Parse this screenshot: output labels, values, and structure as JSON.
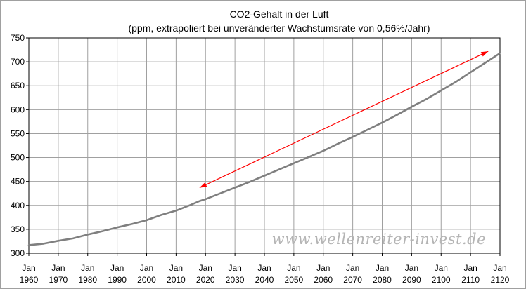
{
  "chart_data": {
    "type": "line",
    "title": "CO2-Gehalt in der Luft",
    "subtitle": "(ppm, extrapoliert bei unveränderter Wachstumsrate von 0,56%/Jahr)",
    "xlabel": "",
    "ylabel": "",
    "xlim": [
      1960,
      2120
    ],
    "ylim": [
      300,
      750
    ],
    "y_ticks": [
      "300",
      "350",
      "400",
      "450",
      "500",
      "550",
      "600",
      "650",
      "700",
      "750"
    ],
    "x_ticks": [
      {
        "month": "Jan",
        "year": "1960"
      },
      {
        "month": "Jan",
        "year": "1970"
      },
      {
        "month": "Jan",
        "year": "1980"
      },
      {
        "month": "Jan",
        "year": "1990"
      },
      {
        "month": "Jan",
        "year": "2000"
      },
      {
        "month": "Jan",
        "year": "2010"
      },
      {
        "month": "Jan",
        "year": "2020"
      },
      {
        "month": "Jan",
        "year": "2030"
      },
      {
        "month": "Jan",
        "year": "2040"
      },
      {
        "month": "Jan",
        "year": "2050"
      },
      {
        "month": "Jan",
        "year": "2060"
      },
      {
        "month": "Jan",
        "year": "2070"
      },
      {
        "month": "Jan",
        "year": "2080"
      },
      {
        "month": "Jan",
        "year": "2090"
      },
      {
        "month": "Jan",
        "year": "2100"
      },
      {
        "month": "Jan",
        "year": "2110"
      },
      {
        "month": "Jan",
        "year": "2120"
      }
    ],
    "grid": true,
    "series": [
      {
        "color": "#7f7f7f",
        "x": [
          1958,
          1960,
          1965,
          1970,
          1975,
          1980,
          1985,
          1990,
          1995,
          2000,
          2005,
          2010,
          2015,
          2018,
          2020,
          2025,
          2030,
          2035,
          2040,
          2045,
          2050,
          2055,
          2060,
          2065,
          2070,
          2075,
          2080,
          2085,
          2090,
          2095,
          2100,
          2105,
          2110,
          2115,
          2120
        ],
        "y": [
          316,
          317,
          320,
          326,
          331,
          339,
          346,
          354,
          361,
          369,
          380,
          389,
          401,
          409,
          413,
          425,
          437,
          449,
          462,
          475,
          488,
          501,
          514,
          529,
          543,
          558,
          573,
          589,
          606,
          622,
          640,
          658,
          678,
          698,
          718
        ]
      }
    ],
    "annotations": [
      {
        "type": "double-arrow",
        "color": "#ff0000",
        "from": {
          "x": 2018,
          "y": 437
        },
        "to": {
          "x": 2116,
          "y": 722
        }
      }
    ]
  },
  "watermark": "www.wellenreiter-invest.de"
}
